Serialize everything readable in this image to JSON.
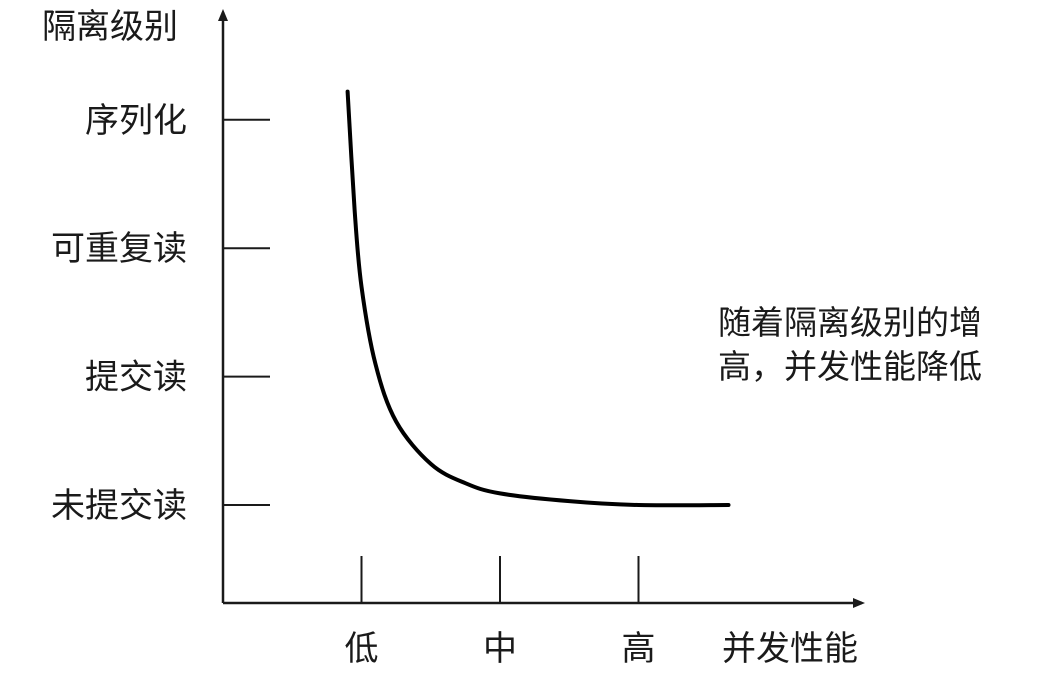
{
  "chart_data": {
    "type": "line",
    "xlabel": "并发性能",
    "ylabel": "隔离级别",
    "x_categories": [
      "低",
      "中",
      "高"
    ],
    "y_categories": [
      "未提交读",
      "提交读",
      "可重复读",
      "序列化"
    ],
    "series": [
      {
        "points": [
          [
            0.9,
            3.22
          ],
          [
            0.95,
            2.3
          ],
          [
            1.0,
            1.7
          ],
          [
            1.1,
            1.1
          ],
          [
            1.25,
            0.65
          ],
          [
            1.5,
            0.32
          ],
          [
            1.75,
            0.17
          ],
          [
            2.0,
            0.09
          ],
          [
            2.5,
            0.03
          ],
          [
            3.0,
            0.0
          ],
          [
            3.65,
            0.0
          ]
        ]
      }
    ],
    "annotation": [
      "随着隔离级别的增",
      "高，并发性能降低"
    ],
    "colors": {
      "line": "#000000",
      "axis": "#1a1a1a",
      "text": "#1a1a1a"
    }
  }
}
